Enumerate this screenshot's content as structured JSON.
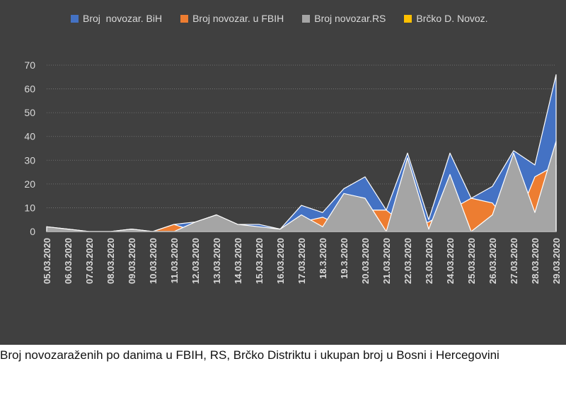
{
  "caption": "Broj novozaraženih po danima u FBIH, RS, Brčko Distriktu i ukupan broj u Bosni i Hercegovini",
  "chart_data": {
    "type": "area",
    "title": "",
    "xlabel": "",
    "ylabel": "",
    "ylim": [
      0,
      70
    ],
    "yticks": [
      0,
      10,
      20,
      30,
      40,
      50,
      60,
      70
    ],
    "grid": true,
    "legend_position": "top",
    "categories": [
      "05.03.2020",
      "06.03.2020",
      "07.03.2020",
      "08.03.2020",
      "09.03.2020",
      "10.03.2020",
      "11.03.2020",
      "12.03.2020",
      "13.03.2020",
      "14.03.2020",
      "15.03.2020",
      "16.03.2020",
      "17.03.2020",
      "18.3.2020",
      "19.3.2020",
      "20.03.2020",
      "21.03.2020",
      "22.03.2020",
      "23.03.2020",
      "24.03.2020",
      "25.03.2020",
      "26.03.2020",
      "27.03.2020",
      "28.03.2020",
      "29.03.2020"
    ],
    "series": [
      {
        "name": "Broj  novozar. BiH",
        "color": "#4472c4",
        "values": [
          2,
          1,
          0,
          0,
          1,
          0,
          3,
          4,
          7,
          3,
          3,
          1,
          11,
          8,
          18,
          23,
          9,
          33,
          5,
          33,
          14,
          19,
          34,
          28,
          66
        ]
      },
      {
        "name": "Broj novozar. u FBIH",
        "color": "#ed7d31",
        "values": [
          0,
          0,
          0,
          0,
          0,
          0,
          3,
          0,
          0,
          0,
          0,
          0,
          4,
          6,
          2,
          9,
          9,
          2,
          4,
          9,
          14,
          12,
          1,
          23,
          28
        ]
      },
      {
        "name": "Broj novozar.RS",
        "color": "#a5a5a5",
        "values": [
          2,
          1,
          0,
          0,
          1,
          0,
          0,
          4,
          7,
          3,
          2,
          1,
          7,
          2,
          16,
          14,
          0,
          31,
          1,
          24,
          0,
          7,
          33,
          8,
          38
        ]
      },
      {
        "name": "Brčko D. Novoz.",
        "color": "#ffc000",
        "values": [
          0,
          0,
          0,
          0,
          0,
          0,
          0,
          0,
          0,
          0,
          0,
          0,
          0,
          0,
          0,
          0,
          0,
          0,
          0,
          0,
          0,
          0,
          0,
          0,
          0
        ]
      }
    ]
  }
}
